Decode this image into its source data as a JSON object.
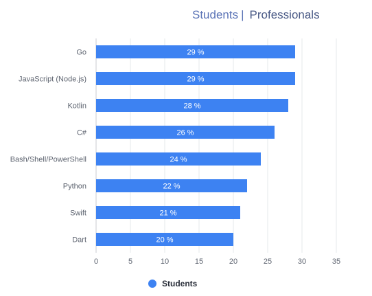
{
  "tabs": {
    "students": "Students",
    "separator": "|",
    "professionals": "Professionals"
  },
  "chart_data": {
    "type": "bar",
    "orientation": "horizontal",
    "categories": [
      "Go",
      "JavaScript (Node.js)",
      "Kotlin",
      "C#",
      "Bash/Shell/PowerShell",
      "Python",
      "Swift",
      "Dart"
    ],
    "series": [
      {
        "name": "Students",
        "values": [
          29,
          29,
          28,
          26,
          24,
          22,
          21,
          20
        ],
        "labels": [
          "29 %",
          "29 %",
          "28 %",
          "26 %",
          "24 %",
          "22 %",
          "21 %",
          "20 %"
        ],
        "color": "#3d82f2"
      }
    ],
    "xlim": [
      0,
      35
    ],
    "xticks": [
      "0",
      "5",
      "10",
      "15",
      "20",
      "25",
      "30",
      "35"
    ],
    "grid": true,
    "legend_position": "bottom"
  }
}
